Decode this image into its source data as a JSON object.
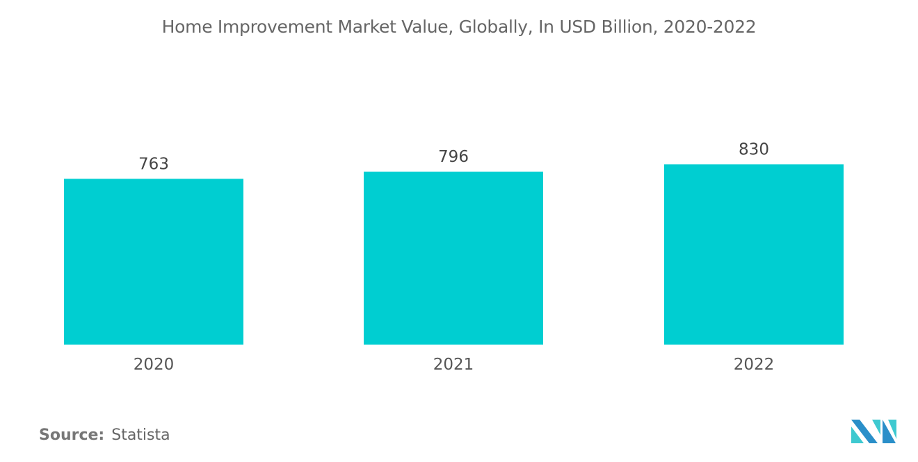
{
  "chart_data": {
    "type": "bar",
    "title": "Home Improvement Market Value, Globally, In USD Billion, 2020-2022",
    "categories": [
      "2020",
      "2021",
      "2022"
    ],
    "values": [
      763,
      796,
      830
    ],
    "data_labels": [
      "763",
      "796",
      "830"
    ],
    "xlabel": "",
    "ylabel": "",
    "grid": false,
    "bar_color": "#00CED1"
  },
  "source": {
    "label": "Source:",
    "value": "Statista"
  },
  "logo": {
    "colors": [
      "#2A8FC9",
      "#3EC9D0"
    ]
  }
}
